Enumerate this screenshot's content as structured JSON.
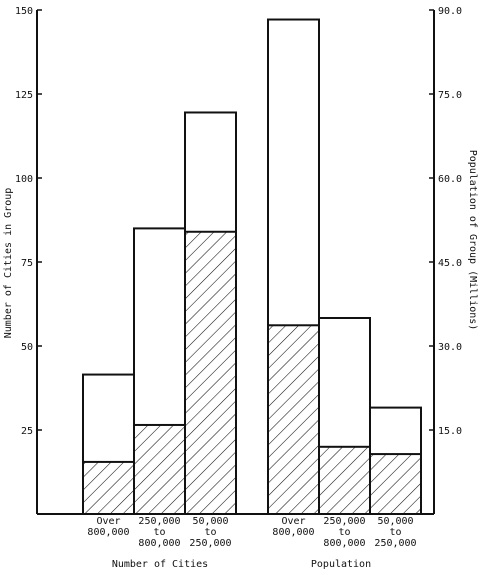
{
  "chart_data": {
    "type": "bar",
    "title": "",
    "groups": [
      {
        "name": "Number of Cities",
        "axis": "left",
        "categories": [
          [
            "Over",
            "800,000"
          ],
          [
            "250,000",
            "to",
            "800,000"
          ],
          [
            "50,000",
            "to",
            "250,000"
          ]
        ],
        "total": [
          41.5,
          85,
          119.5
        ],
        "hatched": [
          15.5,
          26.5,
          84
        ]
      },
      {
        "name": "Population",
        "axis": "right",
        "categories": [
          [
            "Over",
            "800,000"
          ],
          [
            "250,000",
            "to",
            "800,000"
          ],
          [
            "50,000",
            "to",
            "250,000"
          ]
        ],
        "total": [
          88.3,
          35,
          19
        ],
        "hatched": [
          33.7,
          12,
          10.7
        ]
      }
    ],
    "left_axis": {
      "label": "Number of Cities in Group",
      "ylim": [
        0,
        150
      ],
      "ticks": [
        25,
        50,
        75,
        100,
        125,
        150
      ],
      "tick_labels": [
        "25",
        "50",
        "75",
        "100",
        "125",
        "150"
      ]
    },
    "right_axis": {
      "label": "Population of Group (Millions)",
      "ylim": [
        0,
        90
      ],
      "ticks": [
        15,
        30,
        45,
        60,
        75,
        90
      ],
      "tick_labels": [
        "15.0",
        "30.0",
        "45.0",
        "60.0",
        "75.0",
        "90.0"
      ]
    },
    "grid": false,
    "legend": "none"
  }
}
